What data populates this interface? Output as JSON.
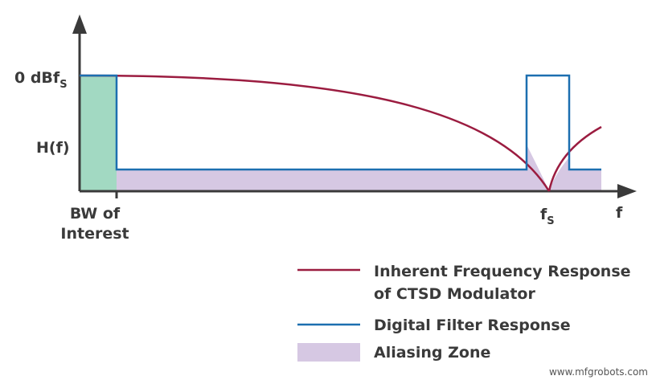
{
  "y_axis": {
    "labels": [
      {
        "text": "0 dBf",
        "subscript": "S"
      },
      {
        "text": "H(f)"
      }
    ]
  },
  "x_axis": {
    "labels": [
      {
        "lines": [
          "BW of",
          "Interest"
        ]
      },
      {
        "text": "f",
        "subscript": "S"
      },
      {
        "text": "f"
      }
    ]
  },
  "legend": {
    "items": [
      {
        "lines": [
          "Inherent Frequency Response",
          "of CTSD Modulator"
        ]
      },
      {
        "lines": [
          "Digital Filter Response"
        ]
      },
      {
        "lines": [
          "Aliasing Zone"
        ]
      }
    ]
  },
  "watermark": "www.mfgrobots.com"
}
